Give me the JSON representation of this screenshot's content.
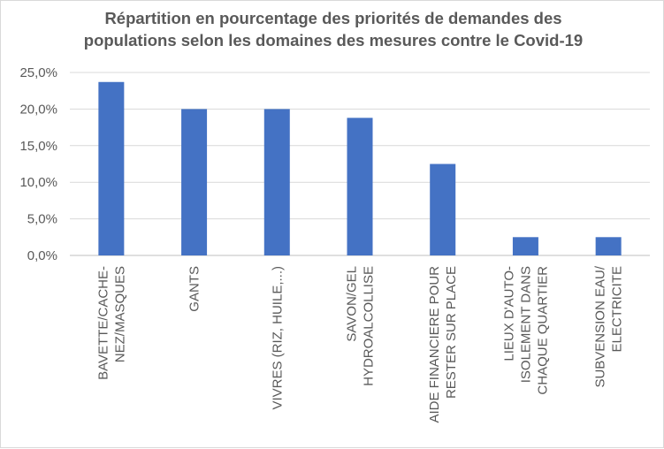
{
  "chart_data": {
    "type": "bar",
    "title_lines": [
      "Répartition en pourcentage des priorités de demandes des",
      "populations selon les domaines des mesures contre le Covid-19"
    ],
    "categories": [
      "BAVETTE/CACHE-NEZ/MASQUES",
      "GANTS",
      "VIVRES (RIZ, HUILE,...)",
      "SAVON/GEL HYDROALCOLLISE",
      "AIDE FINANCIERE POUR RESTER SUR PLACE",
      "LIEUX D'AUTO-ISOLEMENT DANS CHAQUE QUARTIER",
      "SUBVENSION EAU/ ELECTRICITE"
    ],
    "category_label_lines": [
      [
        "BAVETTE/CACHE-",
        "NEZ/MASQUES"
      ],
      [
        "GANTS"
      ],
      [
        "VIVRES (RIZ, HUILE,...)"
      ],
      [
        "SAVON/GEL",
        "HYDROALCOLLISE"
      ],
      [
        "AIDE FINANCIERE POUR",
        "RESTER SUR PLACE"
      ],
      [
        "LIEUX D'AUTO-",
        "ISOLEMENT DANS",
        "CHAQUE QUARTIER"
      ],
      [
        "SUBVENSION EAU/",
        "ELECTRICITE"
      ]
    ],
    "values": [
      23.7,
      20.0,
      20.0,
      18.8,
      12.5,
      2.5,
      2.5
    ],
    "ylim": [
      0,
      25
    ],
    "yticks": [
      0,
      5,
      10,
      15,
      20,
      25
    ],
    "ytick_labels": [
      "0,0%",
      "5,0%",
      "10,0%",
      "15,0%",
      "20,0%",
      "25,0%"
    ],
    "xlabel": "",
    "ylabel": "",
    "grid": true,
    "legend": "none",
    "bar_color": "#4472c4",
    "grid_color": "#d9d9d9"
  }
}
